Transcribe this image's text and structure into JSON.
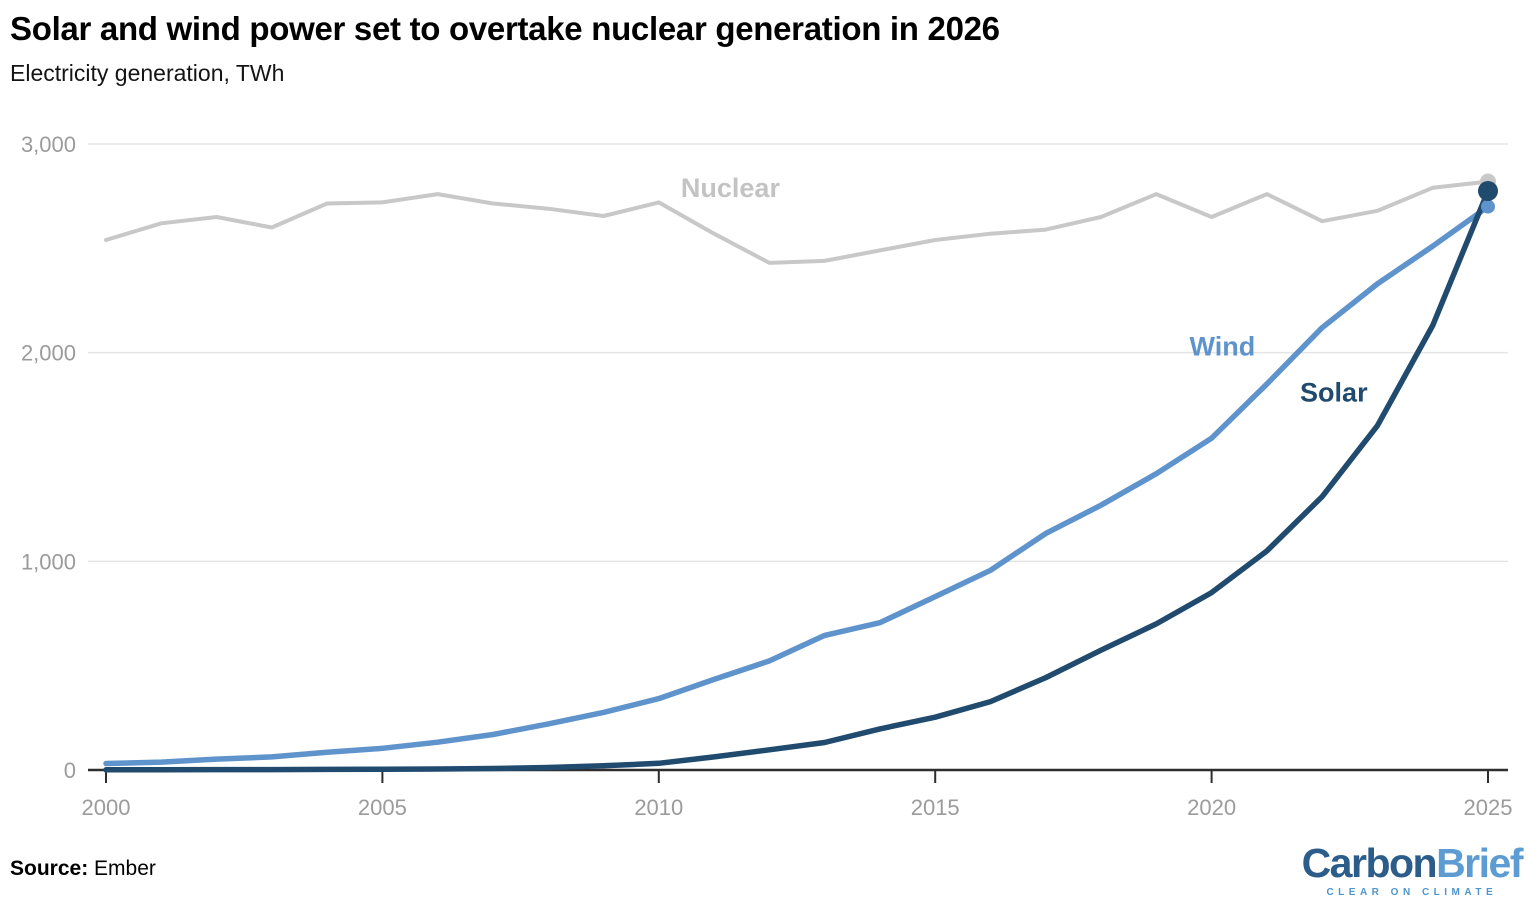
{
  "header": {
    "title": "Solar and wind power set to overtake nuclear generation in 2026",
    "subtitle": "Electricity generation, TWh"
  },
  "chart_data": {
    "type": "line",
    "title": "Solar and wind power set to overtake nuclear generation in 2026",
    "subtitle": "Electricity generation, TWh",
    "xlabel": "",
    "ylabel": "TWh",
    "xlim": [
      2000,
      2025
    ],
    "ylim": [
      0,
      3000
    ],
    "grid": "horizontal",
    "legend": "inline-series-labels",
    "x": [
      2000,
      2001,
      2002,
      2003,
      2004,
      2005,
      2006,
      2007,
      2008,
      2009,
      2010,
      2011,
      2012,
      2013,
      2014,
      2015,
      2016,
      2017,
      2018,
      2019,
      2020,
      2021,
      2022,
      2023,
      2024,
      2025
    ],
    "series": [
      {
        "name": "Nuclear",
        "color": "#c8c8c8",
        "values": [
          2540,
          2620,
          2650,
          2600,
          2715,
          2720,
          2760,
          2715,
          2690,
          2655,
          2720,
          2570,
          2430,
          2440,
          2490,
          2540,
          2570,
          2590,
          2650,
          2760,
          2650,
          2760,
          2630,
          2680,
          2790,
          2820
        ]
      },
      {
        "name": "Wind",
        "color": "#5f93cc",
        "values": [
          31,
          38,
          52,
          63,
          85,
          104,
          133,
          170,
          221,
          276,
          342,
          434,
          523,
          645,
          706,
          831,
          957,
          1134,
          1269,
          1420,
          1590,
          1850,
          2120,
          2330,
          2510,
          2700
        ]
      },
      {
        "name": "Solar",
        "color": "#204a6e",
        "values": [
          1,
          1,
          2,
          2,
          3,
          4,
          5,
          7,
          12,
          20,
          32,
          63,
          97,
          132,
          197,
          253,
          328,
          443,
          574,
          700,
          850,
          1050,
          1310,
          1650,
          2130,
          2775
        ]
      }
    ],
    "annotations": [
      {
        "text": "Nuclear",
        "year": 2010.4,
        "value": 2790,
        "color": "#c3c3c3"
      },
      {
        "text": "Wind",
        "year": 2019.6,
        "value": 2030,
        "color": "#5f93cc"
      },
      {
        "text": "Solar",
        "year": 2021.6,
        "value": 1810,
        "color": "#204a6e"
      }
    ],
    "xticks": {
      "values": [
        2000,
        2005,
        2010,
        2015,
        2020,
        2025
      ],
      "labels": [
        "2000",
        "2005",
        "2010",
        "2015",
        "2020",
        "2025"
      ]
    },
    "yticks": {
      "values": [
        0,
        1000,
        2000,
        3000
      ],
      "labels": [
        "0",
        "1,000",
        "2,000",
        "3,000"
      ]
    }
  },
  "footer": {
    "source_label": "Source:",
    "source_value": "Ember",
    "logo": {
      "part1": "Carbon",
      "part2": "Brief",
      "tagline": "CLEAR ON CLIMATE"
    }
  },
  "colors": {
    "background": "#ffffff",
    "axis": "#2e2e2e",
    "gridline": "#e5e5e5",
    "tick_label": "#9b9b9b",
    "nuclear": "#c8c8c8",
    "wind": "#5f93cc",
    "solar": "#204a6e"
  }
}
